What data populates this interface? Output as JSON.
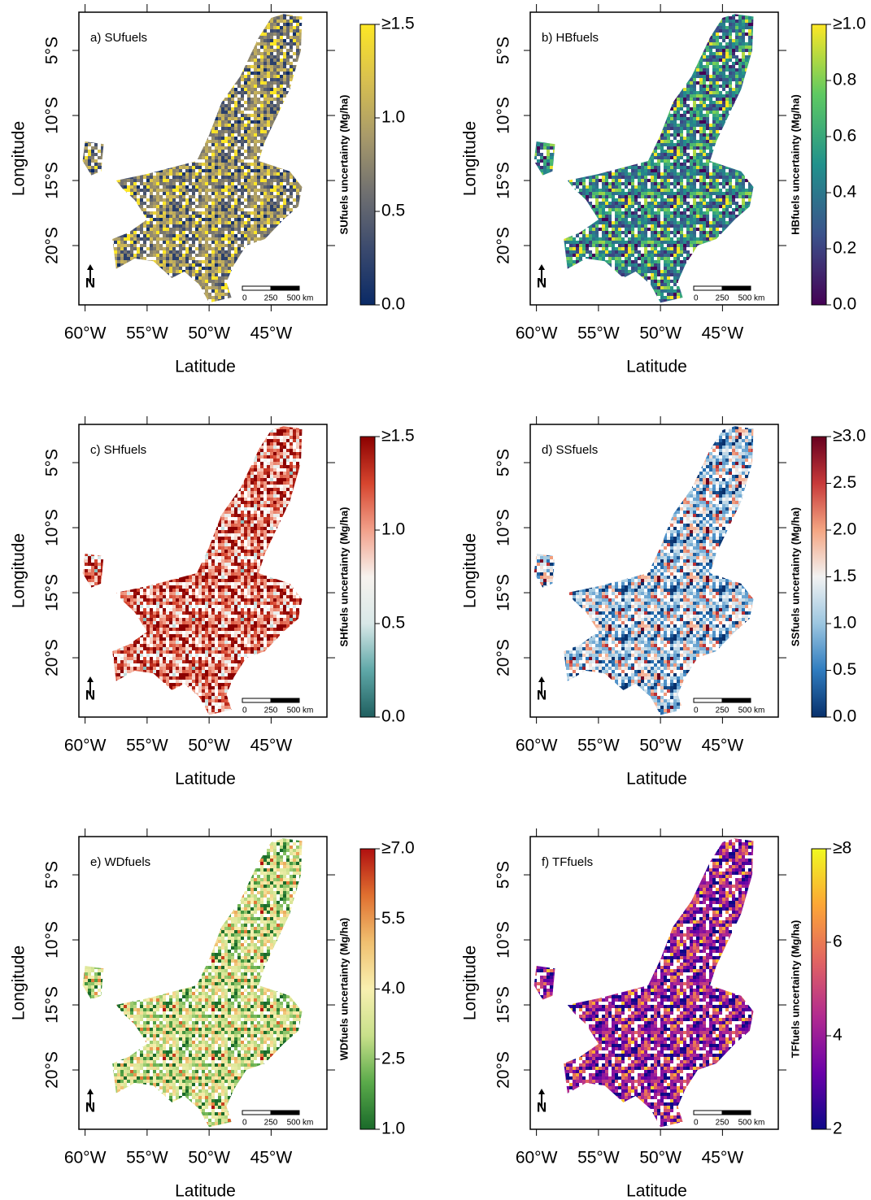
{
  "axes": {
    "xlabel": "Latitude",
    "ylabel": "Longitude",
    "xlim": [
      -60.5,
      -40.5
    ],
    "ylim": [
      -24.56,
      -2.06
    ],
    "xticks": [
      {
        "value": -60,
        "label": "60°W"
      },
      {
        "value": -55,
        "label": "55°W"
      },
      {
        "value": -50,
        "label": "50°W"
      },
      {
        "value": -45,
        "label": "45°W"
      }
    ],
    "yticks": [
      {
        "value": -5,
        "label": "5°S"
      },
      {
        "value": -10,
        "label": "10°S"
      },
      {
        "value": -15,
        "label": "15°S"
      },
      {
        "value": -20,
        "label": "20°S"
      }
    ]
  },
  "scale_bar": [
    "0",
    "250",
    "500 km"
  ],
  "north": "N",
  "panels": [
    {
      "label": "a) SUfuels",
      "colorbar_title": "SUfuels uncertainty (Mg/ha)",
      "clim": [
        0,
        1.5
      ],
      "cticks": [
        {
          "value": 0,
          "label": "0.0"
        },
        0.5,
        {
          "value": 1,
          "label": "1.0"
        },
        {
          "value": 1.5,
          "label": "≥1.5"
        }
      ],
      "colors": [
        "#0a2a66",
        "#3b4a6e",
        "#707070",
        "#a89a6a",
        "#d8c050",
        "#fde725"
      ]
    },
    {
      "label": "b) HBfuels",
      "colorbar_title": "HBfuels uncertainty (Mg/ha)",
      "clim": [
        0,
        1
      ],
      "cticks": [
        {
          "value": 0,
          "label": "0.0"
        },
        0.2,
        0.4,
        0.6,
        0.8,
        {
          "value": 1,
          "label": "≥1.0"
        }
      ],
      "colors": [
        "#440154",
        "#3b528b",
        "#21918c",
        "#5ec962",
        "#fde725"
      ]
    },
    {
      "label": "c) SHfuels",
      "colorbar_title": "SHfuels uncertainty (Mg/ha)",
      "clim": [
        0,
        1.5
      ],
      "cticks": [
        {
          "value": 0,
          "label": "0.0"
        },
        0.5,
        {
          "value": 1,
          "label": "1.0"
        },
        {
          "value": 1.5,
          "label": "≥1.5"
        }
      ],
      "colors": [
        "#1f5f5f",
        "#5fa8a8",
        "#d8e8e8",
        "#f7f2ee",
        "#f2a08a",
        "#d6452e",
        "#8b0000"
      ]
    },
    {
      "label": "d) SSfuels",
      "colorbar_title": "SSfuels uncertainty (Mg/ha)",
      "clim": [
        0,
        3
      ],
      "cticks": [
        {
          "value": 0,
          "label": "0.0"
        },
        0.5,
        {
          "value": 1,
          "label": "1.0"
        },
        1.5,
        {
          "value": 2,
          "label": "2.0"
        },
        2.5,
        {
          "value": 3,
          "label": "≥3.0"
        }
      ],
      "colors": [
        "#08306b",
        "#2f7cbf",
        "#9cc6e0",
        "#f2f2f2",
        "#f4a582",
        "#c73a3a",
        "#67001f"
      ]
    },
    {
      "label": "e) WDfuels",
      "colorbar_title": "WDfuels uncertainty (Mg/ha)",
      "clim": [
        1,
        7
      ],
      "cticks": [
        {
          "value": 1,
          "label": "1.0"
        },
        2.5,
        {
          "value": 4,
          "label": "4.0"
        },
        5.5,
        {
          "value": 7,
          "label": "≥7.0"
        }
      ],
      "colors": [
        "#1a6a2a",
        "#5aaa4a",
        "#c8e08a",
        "#f8f0b0",
        "#f0c070",
        "#e07030",
        "#b01010"
      ]
    },
    {
      "label": "f) TFfuels",
      "colorbar_title": "TFfuels uncertainty (Mg/ha)",
      "clim": [
        2,
        8
      ],
      "cticks": [
        2,
        4,
        6,
        {
          "value": 8,
          "label": "≥8"
        }
      ],
      "colors": [
        "#0d0887",
        "#6a00a8",
        "#b12a90",
        "#e16462",
        "#fca636",
        "#f0f921"
      ]
    }
  ]
}
